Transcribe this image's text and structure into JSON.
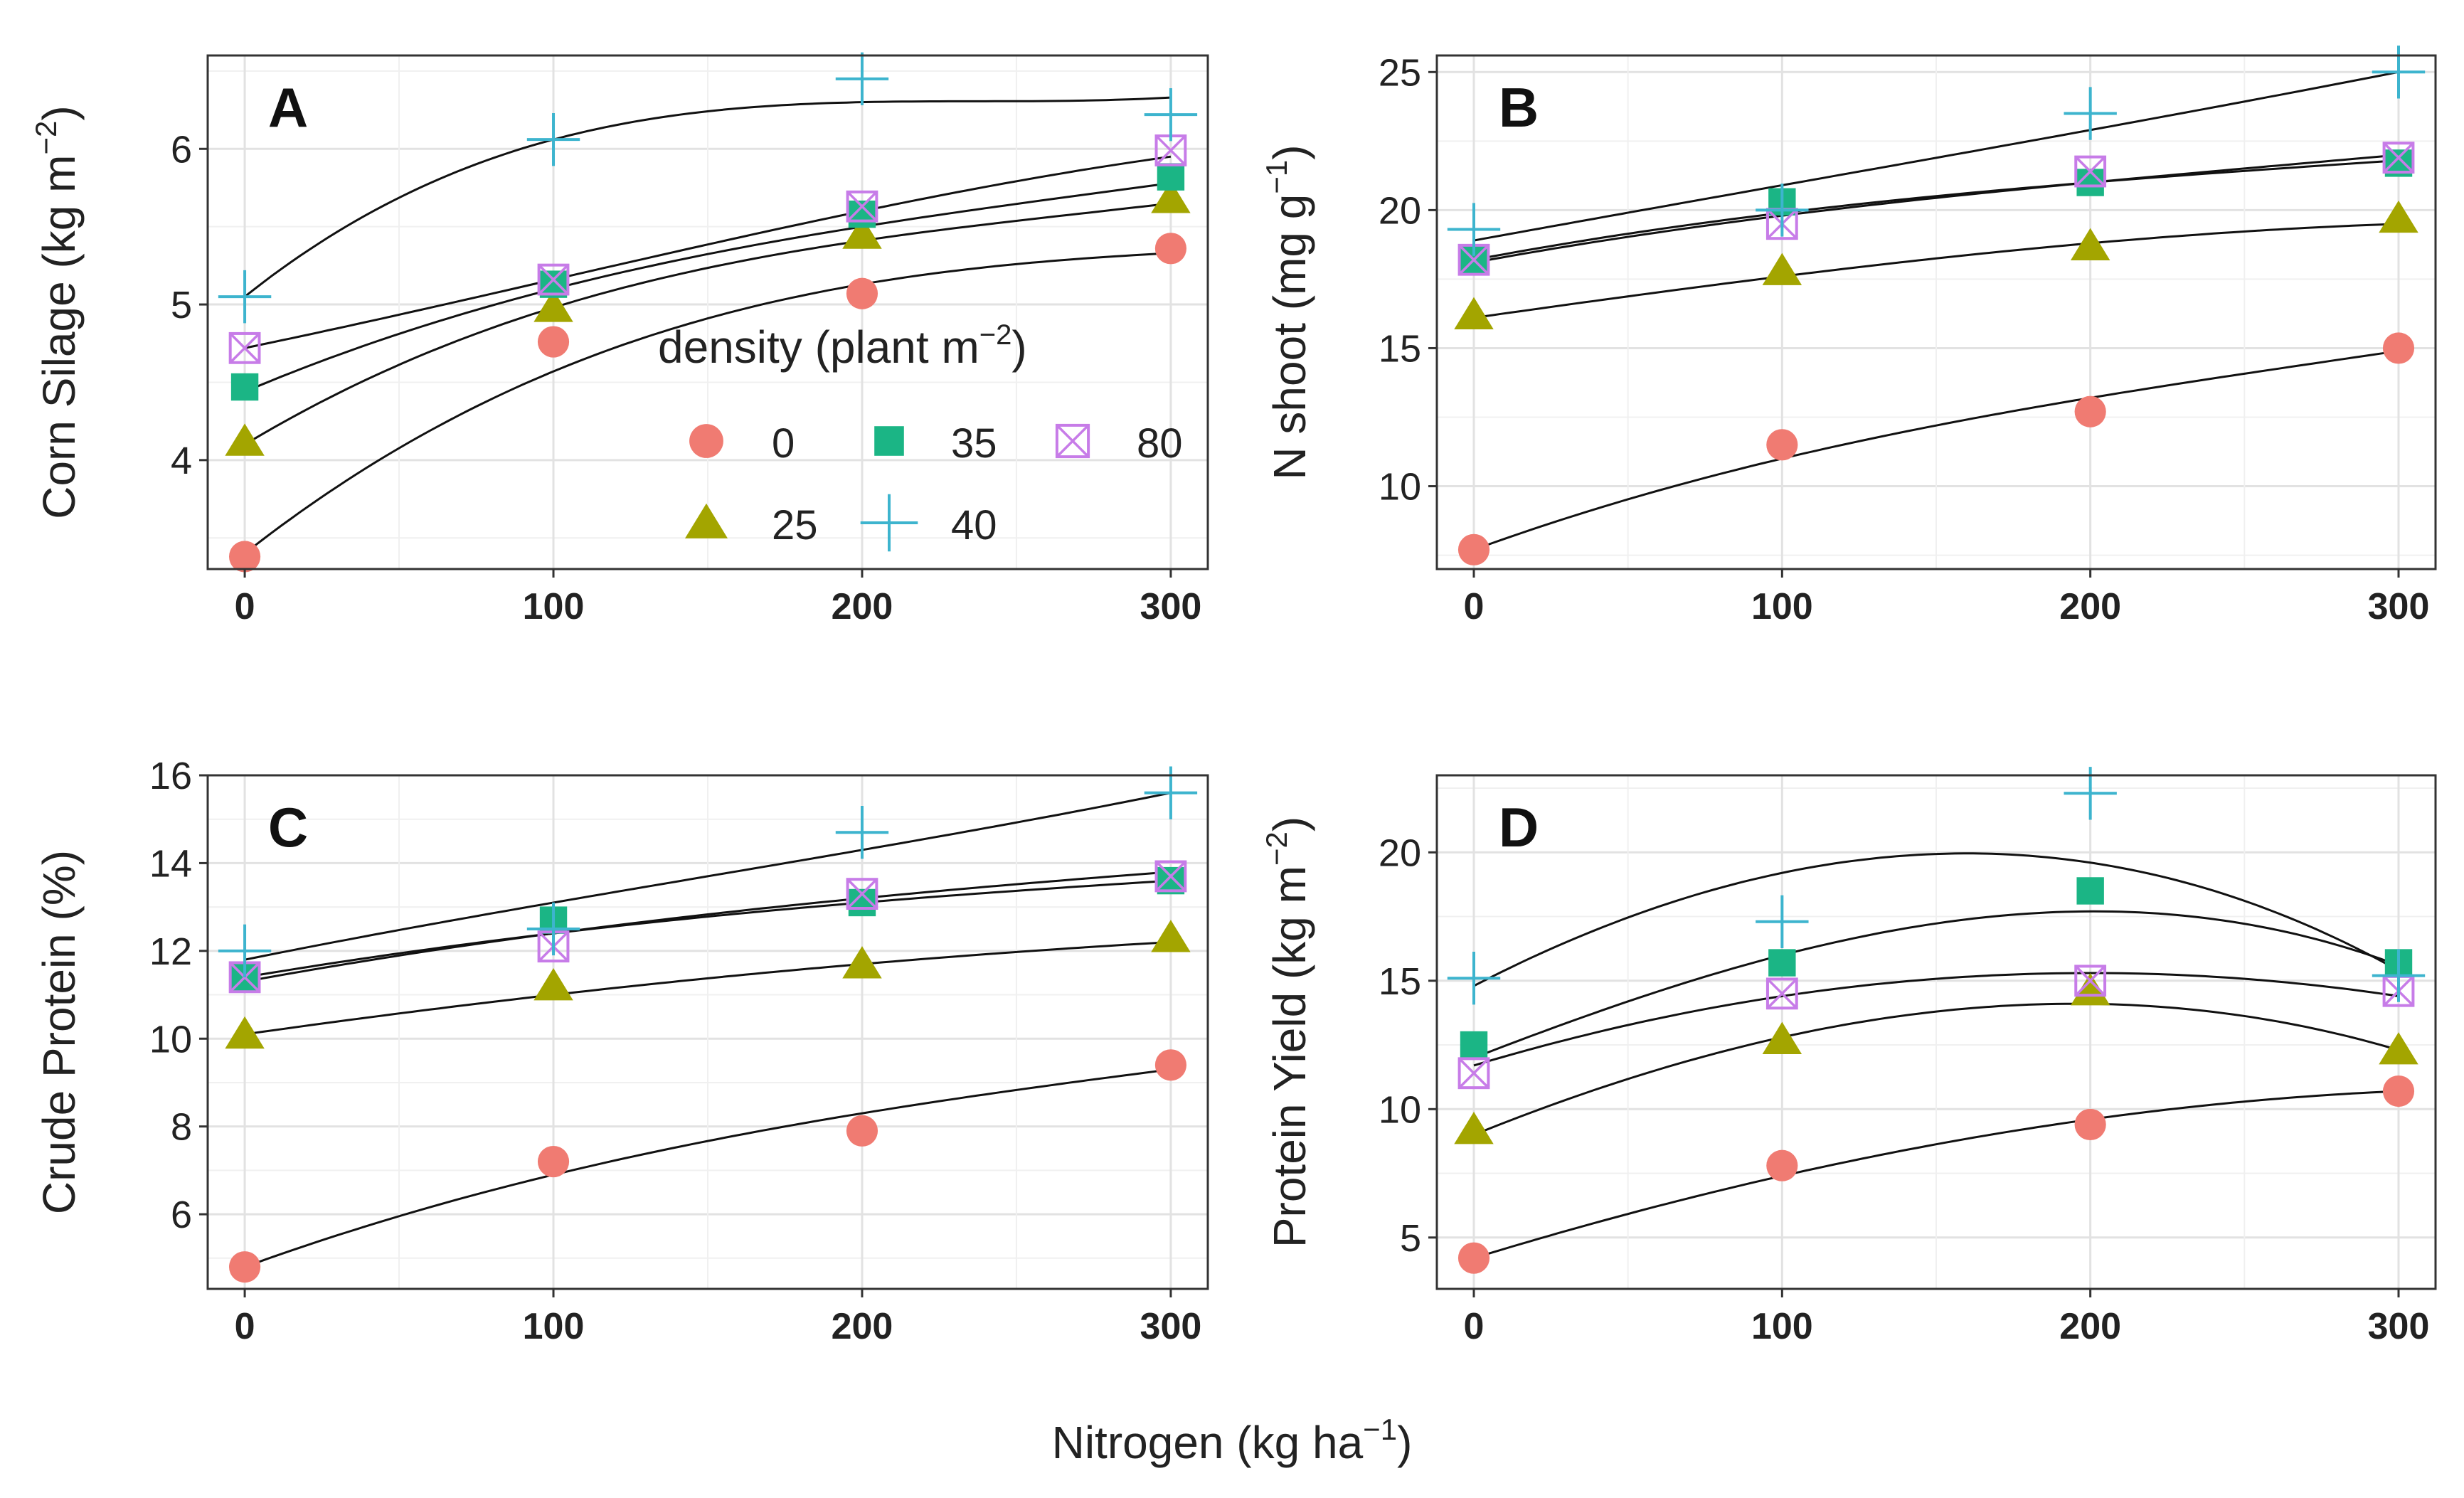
{
  "x_axis_title": "Nitrogen (kg ha",
  "x_axis_title_sup": "−1",
  "x_axis_title_end": ")",
  "legend": {
    "title": "density (plant m",
    "title_sup": "−2",
    "title_end": ")",
    "entries": [
      {
        "label": "0",
        "shape": "circle",
        "color": "#F07B72"
      },
      {
        "label": "35",
        "shape": "square",
        "color": "#1BB585"
      },
      {
        "label": "80",
        "shape": "boxed-x",
        "color": "#C77CE8"
      },
      {
        "label": "25",
        "shape": "triangle",
        "color": "#A3A500"
      },
      {
        "label": "40",
        "shape": "plus",
        "color": "#3DB4CE"
      }
    ]
  },
  "chart_data": [
    {
      "panel": "A",
      "type": "scatter",
      "fit": "curve",
      "ylabel": "Corn Silage (kg m",
      "ylabel_sup": "−2",
      "ylabel_end": ")",
      "x": [
        0,
        100,
        200,
        300
      ],
      "xlim": [
        -12,
        312
      ],
      "ylim": [
        3.3,
        6.6
      ],
      "xticks": [
        0,
        100,
        200,
        300
      ],
      "yticks": [
        4,
        5,
        6
      ],
      "series": [
        {
          "name": "0",
          "values": [
            3.38,
            4.76,
            5.07,
            5.36
          ]
        },
        {
          "name": "25",
          "values": [
            4.12,
            4.98,
            5.45,
            5.68
          ]
        },
        {
          "name": "35",
          "values": [
            4.47,
            5.13,
            5.58,
            5.82
          ]
        },
        {
          "name": "40",
          "values": [
            5.05,
            6.06,
            6.45,
            6.22
          ]
        },
        {
          "name": "80",
          "values": [
            4.72,
            5.16,
            5.63,
            5.99
          ]
        }
      ],
      "fits": [
        {
          "name": "0",
          "values": [
            3.4,
            4.57,
            5.13,
            5.33
          ]
        },
        {
          "name": "25",
          "values": [
            4.1,
            4.98,
            5.41,
            5.65
          ]
        },
        {
          "name": "35",
          "values": [
            4.44,
            5.1,
            5.5,
            5.78
          ]
        },
        {
          "name": "40",
          "values": [
            5.05,
            6.06,
            6.3,
            6.33
          ]
        },
        {
          "name": "80",
          "values": [
            4.72,
            5.16,
            5.6,
            5.95
          ]
        }
      ]
    },
    {
      "panel": "B",
      "type": "scatter",
      "fit": "curve",
      "ylabel": "N shoot (mg g",
      "ylabel_sup": "−1",
      "ylabel_end": ")",
      "x": [
        0,
        100,
        200,
        300
      ],
      "xlim": [
        -12,
        312
      ],
      "ylim": [
        7.0,
        25.6
      ],
      "xticks": [
        0,
        100,
        200,
        300
      ],
      "yticks": [
        10,
        15,
        20,
        25
      ],
      "series": [
        {
          "name": "0",
          "values": [
            7.7,
            11.5,
            12.7,
            15.0
          ]
        },
        {
          "name": "25",
          "values": [
            16.2,
            17.8,
            18.7,
            19.7
          ]
        },
        {
          "name": "35",
          "values": [
            18.2,
            20.3,
            21.0,
            21.7
          ]
        },
        {
          "name": "40",
          "values": [
            19.3,
            20.0,
            23.5,
            25.0
          ]
        },
        {
          "name": "80",
          "values": [
            18.2,
            19.5,
            21.4,
            21.9
          ]
        }
      ],
      "fits": [
        {
          "name": "0",
          "values": [
            7.7,
            11.0,
            13.2,
            14.9
          ]
        },
        {
          "name": "25",
          "values": [
            16.1,
            17.6,
            18.8,
            19.5
          ]
        },
        {
          "name": "35",
          "values": [
            18.2,
            19.9,
            21.0,
            21.8
          ]
        },
        {
          "name": "40",
          "values": [
            18.9,
            20.9,
            22.9,
            25.0
          ]
        },
        {
          "name": "80",
          "values": [
            18.1,
            19.8,
            21.0,
            22.0
          ]
        }
      ]
    },
    {
      "panel": "C",
      "type": "scatter",
      "fit": "curve",
      "ylabel": "Crude Protein (%)",
      "x": [
        0,
        100,
        200,
        300
      ],
      "xlim": [
        -12,
        312
      ],
      "ylim": [
        4.3,
        16.0
      ],
      "xticks": [
        0,
        100,
        200,
        300
      ],
      "yticks": [
        6,
        8,
        10,
        12,
        14,
        16
      ],
      "series": [
        {
          "name": "0",
          "values": [
            4.8,
            7.2,
            7.9,
            9.4
          ]
        },
        {
          "name": "25",
          "values": [
            10.1,
            11.2,
            11.7,
            12.3
          ]
        },
        {
          "name": "35",
          "values": [
            11.4,
            12.7,
            13.1,
            13.6
          ]
        },
        {
          "name": "40",
          "values": [
            12.0,
            12.5,
            14.7,
            15.6
          ]
        },
        {
          "name": "80",
          "values": [
            11.4,
            12.1,
            13.3,
            13.7
          ]
        }
      ],
      "fits": [
        {
          "name": "0",
          "values": [
            4.8,
            6.9,
            8.3,
            9.3
          ]
        },
        {
          "name": "25",
          "values": [
            10.1,
            11.0,
            11.7,
            12.2
          ]
        },
        {
          "name": "35",
          "values": [
            11.4,
            12.4,
            13.1,
            13.6
          ]
        },
        {
          "name": "40",
          "values": [
            11.8,
            13.1,
            14.3,
            15.6
          ]
        },
        {
          "name": "80",
          "values": [
            11.3,
            12.4,
            13.2,
            13.8
          ]
        }
      ]
    },
    {
      "panel": "D",
      "type": "scatter",
      "fit": "curve",
      "ylabel": "Protein Yield (kg m",
      "ylabel_sup": "−2",
      "ylabel_end": ")",
      "x": [
        0,
        100,
        200,
        300
      ],
      "xlim": [
        -12,
        312
      ],
      "ylim": [
        3.0,
        23.0
      ],
      "xticks": [
        0,
        100,
        200,
        300
      ],
      "yticks": [
        5,
        10,
        15,
        20
      ],
      "series": [
        {
          "name": "0",
          "values": [
            4.2,
            7.8,
            9.4,
            10.7
          ]
        },
        {
          "name": "25",
          "values": [
            9.2,
            12.7,
            14.6,
            12.3
          ]
        },
        {
          "name": "35",
          "values": [
            12.5,
            15.7,
            18.5,
            15.7
          ]
        },
        {
          "name": "40",
          "values": [
            15.1,
            17.3,
            22.3,
            15.2
          ]
        },
        {
          "name": "80",
          "values": [
            11.4,
            14.5,
            15.0,
            14.6
          ]
        }
      ],
      "fits": [
        {
          "name": "0",
          "values": [
            4.2,
            7.4,
            9.6,
            10.7
          ]
        },
        {
          "name": "25",
          "values": [
            9.0,
            12.8,
            14.1,
            12.3
          ]
        },
        {
          "name": "35",
          "values": [
            12.0,
            16.0,
            17.7,
            15.6
          ]
        },
        {
          "name": "40",
          "values": [
            14.8,
            19.2,
            19.6,
            15.4
          ]
        },
        {
          "name": "80",
          "values": [
            11.7,
            14.4,
            15.3,
            14.4
          ]
        }
      ]
    }
  ]
}
